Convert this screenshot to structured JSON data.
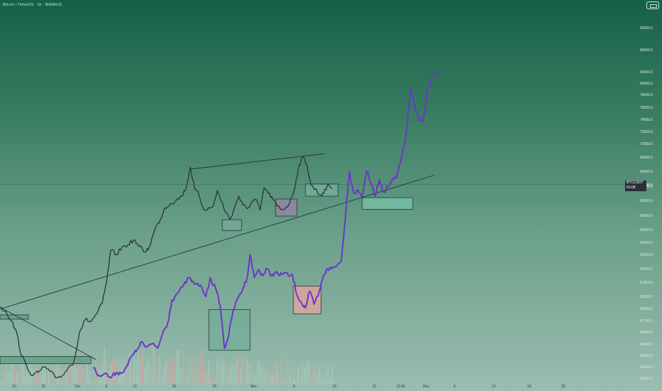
{
  "header": {
    "symbol_label": "Bitcoin / TetherUS · 1h · BINANCE"
  },
  "price_tag": {
    "symbol": "BTCUSDT",
    "price": "64256.9",
    "countdown": "53:08"
  },
  "colors": {
    "candles": "#2a3438",
    "projection": "#6a37c8",
    "trendline": "#23343a",
    "volume_up": "#a9d6c5",
    "volume_down": "#e5a4a4"
  },
  "chart_data": {
    "type": "candlestick",
    "title": "",
    "xlabel": "",
    "ylabel": "",
    "x_ticks": [
      "20",
      "25",
      "Oct",
      "6",
      "11",
      "18",
      "25",
      "Nov",
      "8",
      "15",
      "22",
      "12:00",
      "Dec",
      "6",
      "13",
      "18",
      "25"
    ],
    "y_ticks": [
      "42060.0",
      "43100.0",
      "44200.0",
      "45300.0",
      "46500.0",
      "47700.0",
      "48950.0",
      "50200.0",
      "51850.0",
      "53400.0",
      "55000.0",
      "56500.0",
      "58000.0",
      "60000.0",
      "62000.0",
      "64000.0",
      "66000.0",
      "68000.0",
      "70000.0",
      "72000.0",
      "74000.0",
      "76000.0",
      "78000.0",
      "80000.0",
      "82000.0",
      "86000.0",
      "90000.0"
    ],
    "ylim": [
      42060,
      90000
    ],
    "last_price": 64256.9,
    "series": [
      {
        "name": "BTCUSDT",
        "points": [
          [
            0,
            49100
          ],
          [
            8,
            48700
          ],
          [
            16,
            47700
          ],
          [
            24,
            46300
          ],
          [
            30,
            44200
          ],
          [
            38,
            43100
          ],
          [
            46,
            42300
          ],
          [
            54,
            42600
          ],
          [
            62,
            43100
          ],
          [
            70,
            42700
          ],
          [
            78,
            42100
          ],
          [
            88,
            42300
          ],
          [
            96,
            43000
          ],
          [
            104,
            43600
          ],
          [
            112,
            46500
          ],
          [
            120,
            47800
          ],
          [
            128,
            47600
          ],
          [
            136,
            48400
          ],
          [
            144,
            49500
          ],
          [
            150,
            51850
          ],
          [
            156,
            55500
          ],
          [
            164,
            55000
          ],
          [
            172,
            55900
          ],
          [
            180,
            56200
          ],
          [
            188,
            56800
          ],
          [
            196,
            56000
          ],
          [
            204,
            55300
          ],
          [
            210,
            55900
          ],
          [
            218,
            58000
          ],
          [
            226,
            59500
          ],
          [
            232,
            61000
          ],
          [
            240,
            61600
          ],
          [
            248,
            62000
          ],
          [
            256,
            62600
          ],
          [
            262,
            63800
          ],
          [
            268,
            66600
          ],
          [
            274,
            63600
          ],
          [
            280,
            62800
          ],
          [
            286,
            61000
          ],
          [
            292,
            60800
          ],
          [
            300,
            61200
          ],
          [
            306,
            63400
          ],
          [
            312,
            61800
          ],
          [
            318,
            60400
          ],
          [
            324,
            59400
          ],
          [
            330,
            61000
          ],
          [
            336,
            62600
          ],
          [
            342,
            61400
          ],
          [
            348,
            60900
          ],
          [
            354,
            61700
          ],
          [
            360,
            62200
          ],
          [
            366,
            60700
          ],
          [
            372,
            63800
          ],
          [
            378,
            63000
          ],
          [
            384,
            62200
          ],
          [
            390,
            61300
          ],
          [
            396,
            60800
          ],
          [
            402,
            61000
          ],
          [
            408,
            61700
          ],
          [
            414,
            63400
          ],
          [
            420,
            66400
          ],
          [
            426,
            68000
          ],
          [
            432,
            67000
          ],
          [
            438,
            64100
          ],
          [
            444,
            63600
          ],
          [
            450,
            62800
          ],
          [
            456,
            63000
          ],
          [
            462,
            64300
          ],
          [
            468,
            63700
          ]
        ]
      },
      {
        "name": "Projection",
        "points": [
          [
            131,
            43000
          ],
          [
            140,
            42300
          ],
          [
            148,
            42500
          ],
          [
            156,
            42100
          ],
          [
            164,
            42600
          ],
          [
            170,
            42500
          ],
          [
            178,
            43100
          ],
          [
            186,
            44200
          ],
          [
            192,
            44600
          ],
          [
            198,
            45500
          ],
          [
            206,
            45000
          ],
          [
            214,
            45300
          ],
          [
            222,
            44900
          ],
          [
            230,
            46600
          ],
          [
            236,
            47400
          ],
          [
            242,
            49800
          ],
          [
            250,
            50600
          ],
          [
            258,
            51400
          ],
          [
            266,
            52400
          ],
          [
            274,
            51600
          ],
          [
            282,
            51500
          ],
          [
            290,
            50200
          ],
          [
            296,
            52400
          ],
          [
            304,
            51000
          ],
          [
            310,
            49300
          ],
          [
            316,
            44900
          ],
          [
            322,
            46200
          ],
          [
            328,
            48700
          ],
          [
            336,
            50200
          ],
          [
            342,
            51100
          ],
          [
            348,
            52400
          ],
          [
            352,
            55000
          ],
          [
            358,
            52400
          ],
          [
            364,
            53300
          ],
          [
            370,
            52600
          ],
          [
            376,
            53400
          ],
          [
            382,
            52600
          ],
          [
            388,
            53000
          ],
          [
            394,
            52600
          ],
          [
            400,
            53000
          ],
          [
            406,
            52600
          ],
          [
            412,
            52600
          ],
          [
            418,
            50400
          ],
          [
            424,
            49600
          ],
          [
            430,
            49000
          ],
          [
            436,
            50800
          ],
          [
            442,
            49400
          ],
          [
            448,
            50300
          ],
          [
            454,
            52200
          ],
          [
            460,
            53400
          ],
          [
            466,
            53400
          ],
          [
            472,
            53600
          ],
          [
            480,
            54200
          ],
          [
            484,
            57300
          ],
          [
            488,
            62000
          ],
          [
            492,
            66000
          ],
          [
            498,
            63000
          ],
          [
            504,
            63400
          ],
          [
            510,
            62600
          ],
          [
            516,
            66000
          ],
          [
            522,
            64500
          ],
          [
            528,
            62600
          ],
          [
            534,
            64900
          ],
          [
            540,
            63200
          ],
          [
            546,
            63900
          ],
          [
            552,
            64800
          ],
          [
            558,
            65100
          ],
          [
            564,
            67400
          ],
          [
            570,
            70000
          ],
          [
            574,
            74000
          ],
          [
            578,
            79000
          ],
          [
            584,
            76000
          ],
          [
            590,
            73800
          ],
          [
            596,
            74100
          ],
          [
            602,
            79000
          ],
          [
            608,
            81000
          ],
          [
            614,
            81500
          ],
          [
            620,
            82000
          ]
        ]
      }
    ],
    "trendlines": [
      {
        "from": [
          0,
          48900
        ],
        "to": [
          612,
          65500
        ]
      },
      {
        "from": [
          267,
          66300
        ],
        "to": [
          457,
          68500
        ]
      },
      {
        "from": [
          0,
          49100
        ],
        "to": [
          135,
          43800
        ]
      }
    ],
    "zones": [
      {
        "x1": 0,
        "x2": 40,
        "y1": 47850,
        "y2": 48300,
        "color": "#5f9c83"
      },
      {
        "x1": 0,
        "x2": 128,
        "y1": 43400,
        "y2": 44100,
        "color": "#5f9c83"
      },
      {
        "x1": 313,
        "x2": 340,
        "y1": 57900,
        "y2": 59400,
        "color": "#7aa89a"
      },
      {
        "x1": 388,
        "x2": 418,
        "y1": 59900,
        "y2": 62200,
        "color": "#9a82a8"
      },
      {
        "x1": 430,
        "x2": 476,
        "y1": 62600,
        "y2": 64300,
        "color": "#76b29d"
      },
      {
        "x1": 294,
        "x2": 352,
        "y1": 44700,
        "y2": 48850,
        "color": "#72ad98"
      },
      {
        "x1": 413,
        "x2": 452,
        "y1": 48400,
        "y2": 51400,
        "color": "#e9a39e"
      },
      {
        "x1": 510,
        "x2": 581,
        "y1": 60800,
        "y2": 62400,
        "color": "#79c2a9"
      }
    ],
    "grid": false,
    "volume_shown": true
  }
}
